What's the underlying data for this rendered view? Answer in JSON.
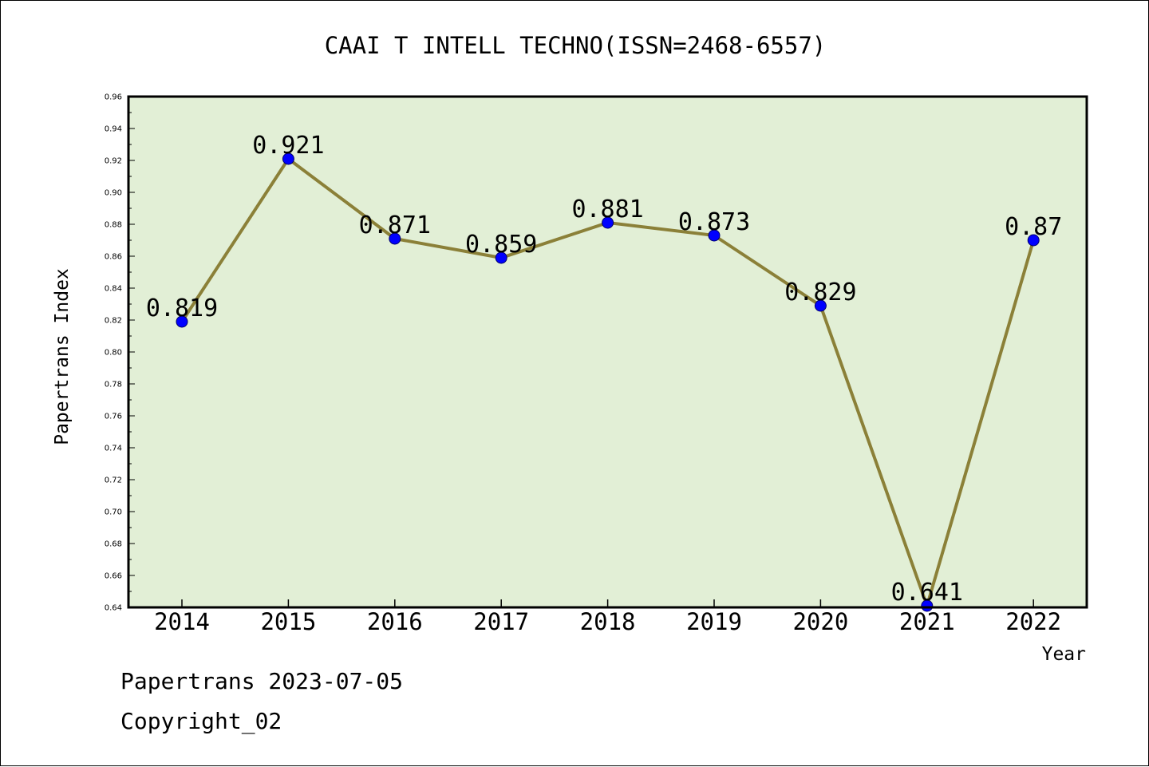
{
  "chart_data": {
    "type": "line",
    "title": "CAAI T INTELL TECHNO(ISSN=2468-6557)",
    "xlabel": "Year",
    "ylabel": "Papertrans Index",
    "categories": [
      "2014",
      "2015",
      "2016",
      "2017",
      "2018",
      "2019",
      "2020",
      "2021",
      "2022"
    ],
    "series": [
      {
        "values": [
          0.819,
          0.921,
          0.871,
          0.859,
          0.881,
          0.873,
          0.829,
          0.641,
          0.87
        ]
      }
    ],
    "data_labels": [
      "0.819",
      "0.921",
      "0.871",
      "0.859",
      "0.881",
      "0.873",
      "0.829",
      "0.641",
      "0.87"
    ],
    "ylim": [
      0.64,
      0.96
    ],
    "ytick_labels": [
      "0.64",
      "0.66",
      "0.68",
      "0.70",
      "0.72",
      "0.74",
      "0.76",
      "0.78",
      "0.80",
      "0.82",
      "0.84",
      "0.86",
      "0.88",
      "0.90",
      "0.92",
      "0.94",
      "0.96"
    ],
    "grid": false,
    "colors": {
      "plot_background": "#e2efd6",
      "line": "#8b8038",
      "marker": "#0000ff"
    }
  },
  "footer": {
    "line1": "Papertrans 2023-07-05",
    "line2": "Copyright_02"
  }
}
